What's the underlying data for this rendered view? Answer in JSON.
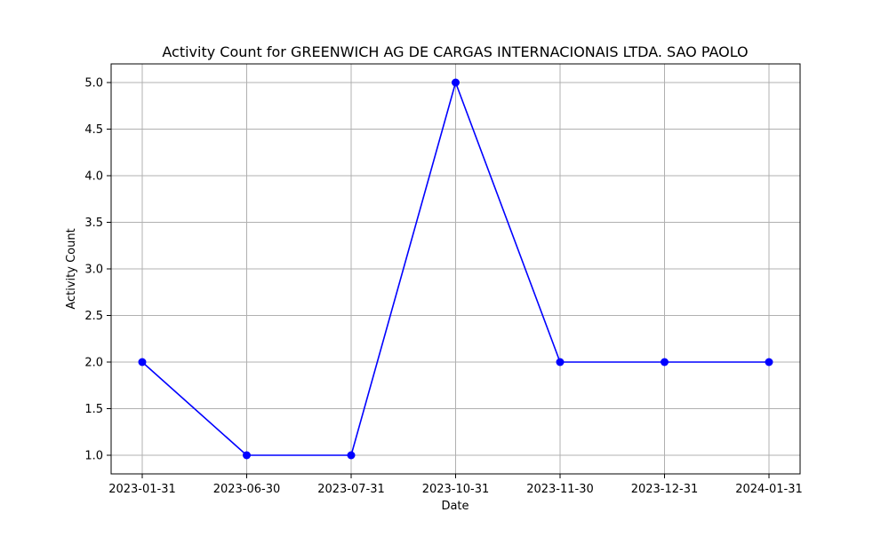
{
  "chart_data": {
    "type": "line",
    "title": "Activity Count for GREENWICH AG DE CARGAS INTERNACIONAIS LTDA. SAO PAOLO",
    "xlabel": "Date",
    "ylabel": "Activity Count",
    "x": [
      "2023-01-31",
      "2023-06-30",
      "2023-07-31",
      "2023-10-31",
      "2023-11-30",
      "2023-12-31",
      "2024-01-31"
    ],
    "series": [
      {
        "values": [
          2,
          1,
          1,
          5,
          2,
          2,
          2
        ],
        "color": "#0000ff",
        "marker": "circle"
      }
    ],
    "ylim": [
      0.8,
      5.2
    ],
    "yticks": [
      1.0,
      1.5,
      2.0,
      2.5,
      3.0,
      3.5,
      4.0,
      4.5,
      5.0
    ],
    "ytick_labels": [
      "1.0",
      "1.5",
      "2.0",
      "2.5",
      "3.0",
      "3.5",
      "4.0",
      "4.5",
      "5.0"
    ],
    "x_spacing": "categorical",
    "grid": true,
    "grid_color": "#b0b0b0"
  }
}
